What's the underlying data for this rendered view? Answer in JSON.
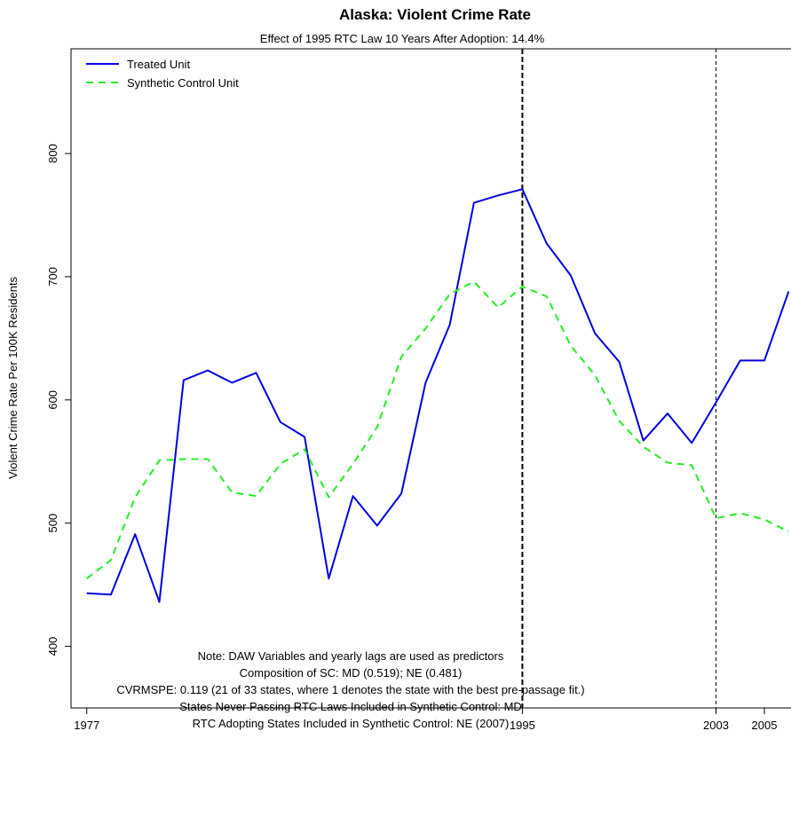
{
  "chart_data": {
    "type": "line",
    "title": "Alaska: Violent Crime Rate",
    "subtitle": "Effect of 1995 RTC Law 10 Years After Adoption: 14.4%",
    "xlabel": "",
    "ylabel": "Violent Crime Rate Per 100K Residents",
    "xlim": [
      1976.35,
      2006.1
    ],
    "ylim": [
      350,
      885
    ],
    "x_ticks": [
      1977,
      1995,
      2003,
      2005
    ],
    "y_ticks": [
      400,
      500,
      600,
      700,
      800
    ],
    "grid": false,
    "legend_position": "top-left",
    "x": [
      1977,
      1978,
      1979,
      1980,
      1981,
      1982,
      1983,
      1984,
      1985,
      1986,
      1987,
      1988,
      1989,
      1990,
      1991,
      1992,
      1993,
      1994,
      1995,
      1996,
      1997,
      1998,
      1999,
      2000,
      2001,
      2002,
      2003,
      2004,
      2005,
      2006
    ],
    "series": [
      {
        "name": "Treated Unit",
        "color": "#0000dd",
        "style": "solid",
        "values": [
          443,
          442,
          491,
          436,
          616,
          624,
          614,
          622,
          582,
          570,
          455,
          522,
          498,
          524,
          614,
          661,
          760,
          766,
          771,
          727,
          701,
          654,
          631,
          567,
          589,
          565,
          598,
          632,
          632,
          688
        ]
      },
      {
        "name": "Synthetic Control Unit",
        "color": "#22ee22",
        "style": "dashed",
        "values": [
          455,
          470,
          521,
          551,
          552,
          552,
          525,
          522,
          548,
          560,
          521,
          548,
          578,
          635,
          658,
          686,
          696,
          675,
          692,
          684,
          644,
          620,
          583,
          562,
          549,
          547,
          504,
          508,
          503,
          493
        ]
      }
    ],
    "vlines": [
      {
        "x": 1995,
        "style": "dashed-thick"
      },
      {
        "x": 2003,
        "style": "dashed-thin"
      }
    ],
    "notes": [
      "Note: DAW Variables and yearly lags are used as predictors",
      "Composition of SC: MD (0.519); NE (0.481)",
      "CVRMSPE: 0.119 (21 of 33 states, where 1 denotes the state with the best pre-passage fit.)",
      "States Never Passing RTC Laws Included in Synthetic Control:  MD",
      "RTC Adopting States Included in Synthetic Control:  NE (2007)"
    ]
  }
}
